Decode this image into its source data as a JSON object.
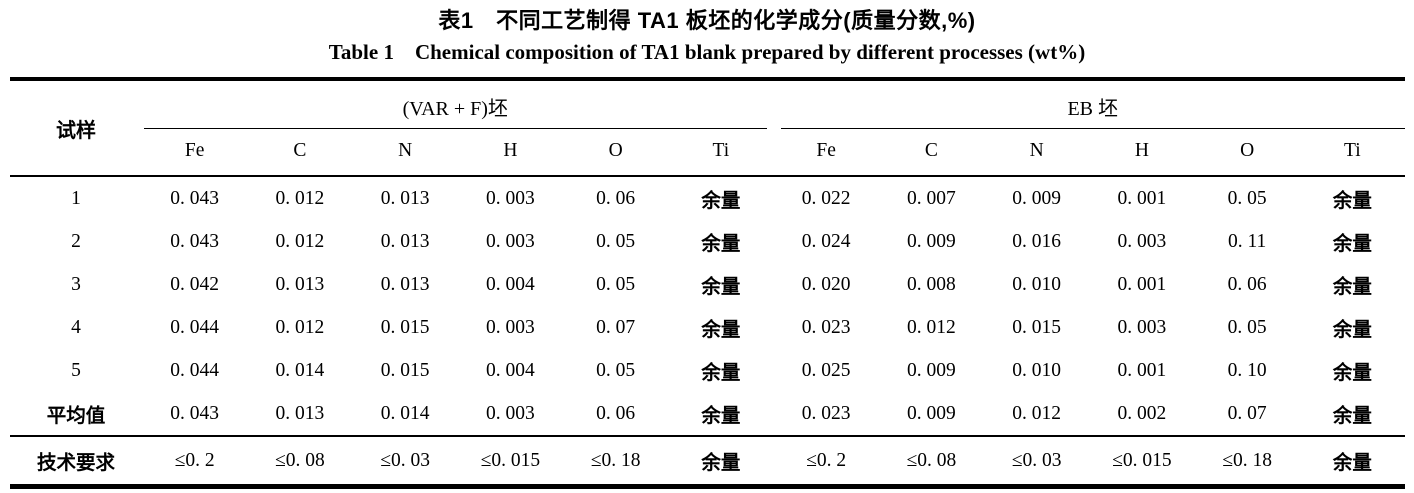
{
  "title": {
    "zh": "表1　不同工艺制得 TA1 板坯的化学成分(质量分数,%)",
    "en": "Table 1　Chemical composition of TA1 blank prepared by different processes (wt%)"
  },
  "table": {
    "sample_col_header": "试样",
    "groups": [
      {
        "label": "(VAR + F)坯",
        "elements": [
          "Fe",
          "C",
          "N",
          "H",
          "O",
          "Ti"
        ]
      },
      {
        "label": "EB 坯",
        "elements": [
          "Fe",
          "C",
          "N",
          "H",
          "O",
          "Ti"
        ]
      }
    ],
    "rows": [
      {
        "label": "1",
        "values": [
          "0. 043",
          "0. 012",
          "0. 013",
          "0. 003",
          "0. 06",
          "余量",
          "0. 022",
          "0. 007",
          "0. 009",
          "0. 001",
          "0. 05",
          "余量"
        ]
      },
      {
        "label": "2",
        "values": [
          "0. 043",
          "0. 012",
          "0. 013",
          "0. 003",
          "0. 05",
          "余量",
          "0. 024",
          "0. 009",
          "0. 016",
          "0. 003",
          "0. 11",
          "余量"
        ]
      },
      {
        "label": "3",
        "values": [
          "0. 042",
          "0. 013",
          "0. 013",
          "0. 004",
          "0. 05",
          "余量",
          "0. 020",
          "0. 008",
          "0. 010",
          "0. 001",
          "0. 06",
          "余量"
        ]
      },
      {
        "label": "4",
        "values": [
          "0. 044",
          "0. 012",
          "0. 015",
          "0. 003",
          "0. 07",
          "余量",
          "0. 023",
          "0. 012",
          "0. 015",
          "0. 003",
          "0. 05",
          "余量"
        ]
      },
      {
        "label": "5",
        "values": [
          "0. 044",
          "0. 014",
          "0. 015",
          "0. 004",
          "0. 05",
          "余量",
          "0. 025",
          "0. 009",
          "0. 010",
          "0. 001",
          "0. 10",
          "余量"
        ]
      },
      {
        "label": "平均值",
        "values": [
          "0. 043",
          "0. 013",
          "0. 014",
          "0. 003",
          "0. 06",
          "余量",
          "0. 023",
          "0. 009",
          "0. 012",
          "0. 002",
          "0. 07",
          "余量"
        ]
      },
      {
        "label": "技术要求",
        "values": [
          "≤0. 2",
          "≤0. 08",
          "≤0. 03",
          "≤0. 015",
          "≤0. 18",
          "余量",
          "≤0. 2",
          "≤0. 08",
          "≤0. 03",
          "≤0. 015",
          "≤0. 18",
          "余量"
        ]
      }
    ]
  }
}
